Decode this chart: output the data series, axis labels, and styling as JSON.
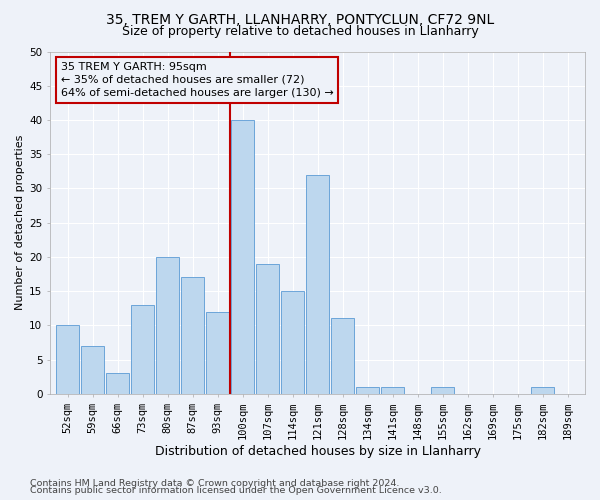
{
  "title": "35, TREM Y GARTH, LLANHARRY, PONTYCLUN, CF72 9NL",
  "subtitle": "Size of property relative to detached houses in Llanharry",
  "xlabel": "Distribution of detached houses by size in Llanharry",
  "ylabel": "Number of detached properties",
  "footnote1": "Contains HM Land Registry data © Crown copyright and database right 2024.",
  "footnote2": "Contains public sector information licensed under the Open Government Licence v3.0.",
  "bin_labels": [
    "52sqm",
    "59sqm",
    "66sqm",
    "73sqm",
    "80sqm",
    "87sqm",
    "93sqm",
    "100sqm",
    "107sqm",
    "114sqm",
    "121sqm",
    "128sqm",
    "134sqm",
    "141sqm",
    "148sqm",
    "155sqm",
    "162sqm",
    "169sqm",
    "175sqm",
    "182sqm",
    "189sqm"
  ],
  "bar_heights": [
    10,
    7,
    3,
    13,
    20,
    17,
    12,
    40,
    19,
    15,
    32,
    11,
    1,
    1,
    0,
    1,
    0,
    0,
    0,
    1,
    0
  ],
  "bar_color": "#bdd7ee",
  "bar_edge_color": "#5b9bd5",
  "vline_color": "#c00000",
  "annotation_line1": "35 TREM Y GARTH: 95sqm",
  "annotation_line2": "← 35% of detached houses are smaller (72)",
  "annotation_line3": "64% of semi-detached houses are larger (130) →",
  "annotation_box_color": "#c00000",
  "ylim": [
    0,
    50
  ],
  "yticks": [
    0,
    5,
    10,
    15,
    20,
    25,
    30,
    35,
    40,
    45,
    50
  ],
  "background_color": "#eef2f9",
  "grid_color": "#ffffff",
  "title_fontsize": 10,
  "subtitle_fontsize": 9,
  "xlabel_fontsize": 9,
  "ylabel_fontsize": 8,
  "tick_fontsize": 7.5,
  "footnote_fontsize": 6.8,
  "annotation_fontsize": 8
}
